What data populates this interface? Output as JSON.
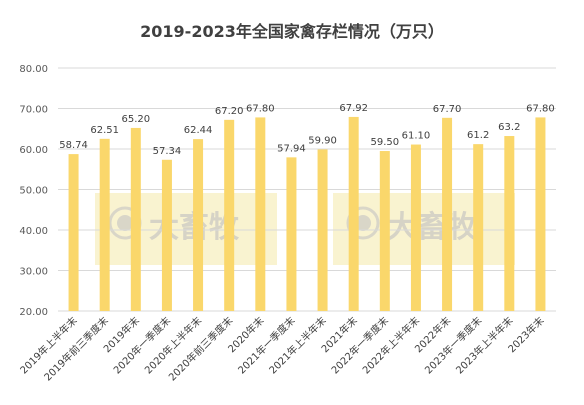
{
  "chart_data": {
    "type": "bar",
    "title": "2019-2023年全国家禽存栏情况（万只）",
    "categories": [
      "2019年上半年末",
      "2019年前三季度末",
      "2019年末",
      "2020年一季度末",
      "2020年上半年末",
      "2020年前三季度末",
      "2020年末",
      "2021年一季度末",
      "2021年上半年末",
      "2021年末",
      "2022年一季度末",
      "2022年上半年末",
      "2022年末",
      "2023年一季度末",
      "2023年上半年末",
      "2023年末"
    ],
    "values": [
      58.74,
      62.51,
      65.2,
      57.34,
      62.44,
      67.2,
      67.8,
      57.94,
      59.9,
      67.92,
      59.5,
      61.1,
      67.7,
      61.2,
      63.2,
      67.8
    ],
    "value_labels": [
      "58.74",
      "62.51",
      "65.20",
      "57.34",
      "62.44",
      "67.20",
      "67.80",
      "57.94",
      "59.90",
      "67.92",
      "59.50",
      "61.10",
      "67.70",
      "61.2",
      "63.2",
      "67.80"
    ],
    "y_ticks": [
      "20.00",
      "30.00",
      "40.00",
      "50.00",
      "60.00",
      "70.00",
      "80.00"
    ],
    "ylim": [
      20,
      80
    ],
    "grid": true,
    "legend": "none",
    "bar_color": "#FAD76B",
    "watermark": [
      "大畜牧",
      "大畜牧"
    ]
  }
}
